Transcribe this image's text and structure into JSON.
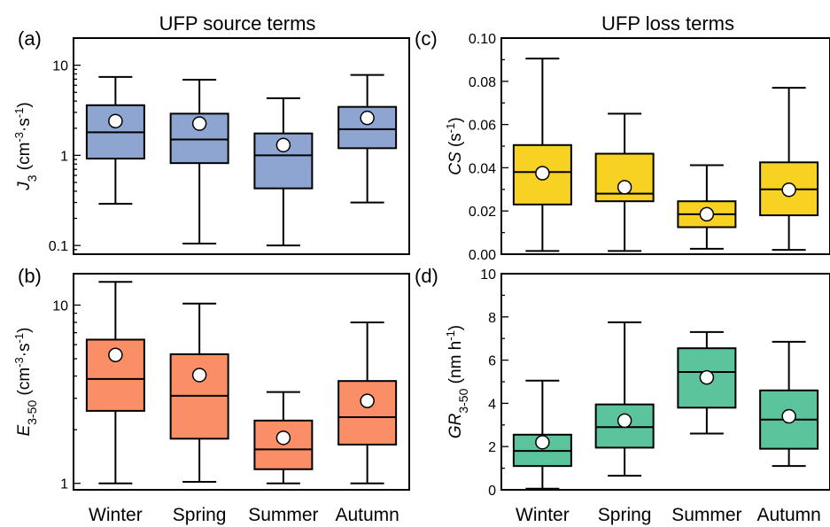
{
  "chart_data": [
    {
      "panel": "(a)",
      "title": "UFP source terms",
      "type": "box",
      "yscale": "log",
      "ylim": [
        0.08,
        20
      ],
      "yticks": [
        "0.1",
        "1",
        "10"
      ],
      "ylabel_main": "J",
      "ylabel_sub": "3",
      "ylabel_unit": " (cm",
      "ylabel_sup1": "-3",
      "ylabel_mid": "·s",
      "ylabel_sup2": "-1",
      "ylabel_end": ")",
      "color": "#8FA5D1",
      "categories": [
        "Winter",
        "Spring",
        "Summer",
        "Autumn"
      ],
      "boxes": [
        {
          "whisker_low": 0.29,
          "q1": 0.92,
          "median": 1.8,
          "q3": 3.6,
          "whisker_high": 7.4,
          "mean": 2.4
        },
        {
          "whisker_low": 0.105,
          "q1": 0.82,
          "median": 1.5,
          "q3": 2.9,
          "whisker_high": 6.9,
          "mean": 2.25
        },
        {
          "whisker_low": 0.1,
          "q1": 0.43,
          "median": 1.0,
          "q3": 1.75,
          "whisker_high": 4.3,
          "mean": 1.3
        },
        {
          "whisker_low": 0.3,
          "q1": 1.2,
          "median": 1.95,
          "q3": 3.45,
          "whisker_high": 7.8,
          "mean": 2.6
        }
      ]
    },
    {
      "panel": "(c)",
      "title": "UFP loss terms",
      "type": "box",
      "yscale": "linear",
      "ylim": [
        0,
        0.1
      ],
      "yticks": [
        "0.00",
        "0.02",
        "0.04",
        "0.06",
        "0.08",
        "0.10"
      ],
      "ylabel_main": "CS",
      "ylabel_sub": "",
      "ylabel_unit": " (s",
      "ylabel_sup1": "-1",
      "ylabel_mid": "",
      "ylabel_sup2": "",
      "ylabel_end": ")",
      "color": "#F8D222",
      "categories": [
        "Winter",
        "Spring",
        "Summer",
        "Autumn"
      ],
      "boxes": [
        {
          "whisker_low": 0.0015,
          "q1": 0.023,
          "median": 0.038,
          "q3": 0.0505,
          "whisker_high": 0.0905,
          "mean": 0.0375
        },
        {
          "whisker_low": 0.0015,
          "q1": 0.0245,
          "median": 0.028,
          "q3": 0.0465,
          "whisker_high": 0.065,
          "mean": 0.031
        },
        {
          "whisker_low": 0.0025,
          "q1": 0.0125,
          "median": 0.0185,
          "q3": 0.0245,
          "whisker_high": 0.0412,
          "mean": 0.0185
        },
        {
          "whisker_low": 0.002,
          "q1": 0.018,
          "median": 0.03,
          "q3": 0.0425,
          "whisker_high": 0.077,
          "mean": 0.0298
        }
      ]
    },
    {
      "panel": "(b)",
      "title": "",
      "type": "box",
      "yscale": "log",
      "ylim": [
        0.92,
        15
      ],
      "yticks": [
        "1",
        "10"
      ],
      "ylabel_main": "E",
      "ylabel_sub": "3-50",
      "ylabel_unit": " (cm",
      "ylabel_sup1": "-3",
      "ylabel_mid": "·s",
      "ylabel_sup2": "-1",
      "ylabel_end": ")",
      "color": "#F98E67",
      "categories": [
        "Winter",
        "Spring",
        "Summer",
        "Autumn"
      ],
      "boxes": [
        {
          "whisker_low": 1.0,
          "q1": 2.55,
          "median": 3.85,
          "q3": 6.4,
          "whisker_high": 13.5,
          "mean": 5.25
        },
        {
          "whisker_low": 1.02,
          "q1": 1.78,
          "median": 3.1,
          "q3": 5.3,
          "whisker_high": 10.2,
          "mean": 4.05
        },
        {
          "whisker_low": 1.0,
          "q1": 1.2,
          "median": 1.55,
          "q3": 2.25,
          "whisker_high": 3.25,
          "mean": 1.8
        },
        {
          "whisker_low": 1.0,
          "q1": 1.65,
          "median": 2.35,
          "q3": 3.75,
          "whisker_high": 8.0,
          "mean": 2.9
        }
      ]
    },
    {
      "panel": "(d)",
      "title": "",
      "type": "box",
      "yscale": "linear",
      "ylim": [
        0,
        10
      ],
      "yticks": [
        "0",
        "2",
        "4",
        "6",
        "8",
        "10"
      ],
      "ylabel_main": "GR",
      "ylabel_sub": "3-50",
      "ylabel_unit": " (nm h",
      "ylabel_sup1": "-1",
      "ylabel_mid": "",
      "ylabel_sup2": "",
      "ylabel_end": ")",
      "color": "#5CC49D",
      "categories": [
        "Winter",
        "Spring",
        "Summer",
        "Autumn"
      ],
      "boxes": [
        {
          "whisker_low": 0.05,
          "q1": 1.1,
          "median": 1.8,
          "q3": 2.55,
          "whisker_high": 5.05,
          "mean": 2.2
        },
        {
          "whisker_low": 0.65,
          "q1": 1.95,
          "median": 2.9,
          "q3": 3.95,
          "whisker_high": 7.75,
          "mean": 3.2
        },
        {
          "whisker_low": 2.6,
          "q1": 3.8,
          "median": 5.45,
          "q3": 6.55,
          "whisker_high": 7.3,
          "mean": 5.2
        },
        {
          "whisker_low": 1.1,
          "q1": 1.9,
          "median": 3.25,
          "q3": 4.6,
          "whisker_high": 6.85,
          "mean": 3.4
        }
      ]
    }
  ]
}
